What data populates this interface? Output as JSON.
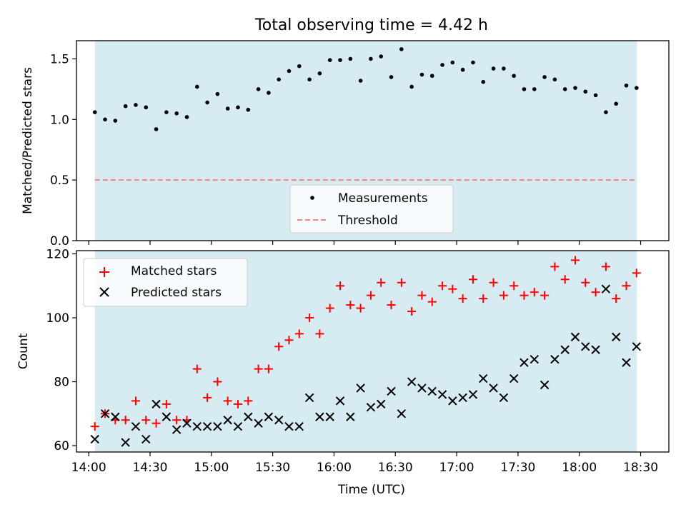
{
  "chart_data": {
    "title": "Total observing time = 4.42 h",
    "xlabel": "Time (UTC)",
    "x_tick_labels": [
      "14:00",
      "14:30",
      "15:00",
      "15:30",
      "16:00",
      "16:30",
      "17:00",
      "17:30",
      "18:00",
      "18:30"
    ],
    "x_ticks_hours": [
      14.0,
      14.5,
      15.0,
      15.5,
      16.0,
      16.5,
      17.0,
      17.5,
      18.0,
      18.5
    ],
    "xlim_hours": [
      13.9,
      18.73
    ],
    "shaded_span_hours": [
      14.05,
      18.47
    ],
    "shade_color": "#add8e6",
    "times": [
      "14:03",
      "14:08",
      "14:13",
      "14:18",
      "14:23",
      "14:28",
      "14:33",
      "14:38",
      "14:43",
      "14:48",
      "14:53",
      "14:58",
      "15:03",
      "15:08",
      "15:13",
      "15:18",
      "15:23",
      "15:28",
      "15:33",
      "15:38",
      "15:43",
      "15:48",
      "15:53",
      "15:58",
      "16:03",
      "16:08",
      "16:13",
      "16:18",
      "16:23",
      "16:28",
      "16:33",
      "16:38",
      "16:43",
      "16:48",
      "16:53",
      "16:58",
      "17:03",
      "17:08",
      "17:13",
      "17:18",
      "17:23",
      "17:28",
      "17:33",
      "17:38",
      "17:43",
      "17:48",
      "17:53",
      "17:58",
      "18:03",
      "18:08",
      "18:13",
      "18:18",
      "18:23",
      "18:28"
    ],
    "top_panel": {
      "type": "scatter",
      "ylabel": "Matched/Predicted stars",
      "ylim": [
        0,
        1.65
      ],
      "y_ticks": [
        "0.0",
        "0.5",
        "1.0",
        "1.5"
      ],
      "threshold": 0.5,
      "threshold_color": "#ff7f7f",
      "legend_position": "bottom-center",
      "legend": [
        "Measurements",
        "Threshold"
      ],
      "series": {
        "name": "Measurements",
        "values": [
          1.06,
          1.0,
          0.99,
          1.11,
          1.12,
          1.1,
          0.92,
          1.06,
          1.05,
          1.02,
          1.27,
          1.14,
          1.21,
          1.09,
          1.1,
          1.08,
          1.25,
          1.22,
          1.33,
          1.4,
          1.44,
          1.33,
          1.38,
          1.49,
          1.49,
          1.5,
          1.32,
          1.5,
          1.52,
          1.35,
          1.58,
          1.27,
          1.37,
          1.36,
          1.45,
          1.47,
          1.41,
          1.47,
          1.31,
          1.42,
          1.42,
          1.36,
          1.25,
          1.25,
          1.35,
          1.33,
          1.25,
          1.26,
          1.23,
          1.2,
          1.06,
          1.13,
          1.28,
          1.26
        ]
      }
    },
    "bottom_panel": {
      "type": "scatter",
      "ylabel": "Count",
      "ylim": [
        58,
        121
      ],
      "y_ticks": [
        "60",
        "80",
        "100",
        "120"
      ],
      "legend_position": "top-left",
      "series": [
        {
          "name": "Matched stars",
          "marker": "plus",
          "color": "#ff0000",
          "values": [
            66,
            70,
            68,
            68,
            74,
            68,
            67,
            73,
            68,
            68,
            84,
            75,
            80,
            74,
            73,
            74,
            84,
            84,
            91,
            93,
            95,
            100,
            95,
            103,
            110,
            104,
            103,
            107,
            111,
            104,
            111,
            102,
            107,
            105,
            110,
            109,
            106,
            112,
            106,
            111,
            107,
            110,
            107,
            108,
            107,
            116,
            112,
            118,
            111,
            108,
            116,
            106,
            110,
            114
          ]
        },
        {
          "name": "Predicted stars",
          "marker": "x",
          "color": "#000000",
          "values": [
            62,
            70,
            69,
            61,
            66,
            62,
            73,
            69,
            65,
            67,
            66,
            66,
            66,
            68,
            66,
            69,
            67,
            69,
            68,
            66,
            66,
            75,
            69,
            69,
            74,
            69,
            78,
            72,
            73,
            77,
            70,
            80,
            78,
            77,
            76,
            74,
            75,
            76,
            81,
            78,
            75,
            81,
            86,
            87,
            79,
            87,
            90,
            94,
            91,
            90,
            109,
            94,
            86,
            91
          ]
        }
      ]
    }
  }
}
